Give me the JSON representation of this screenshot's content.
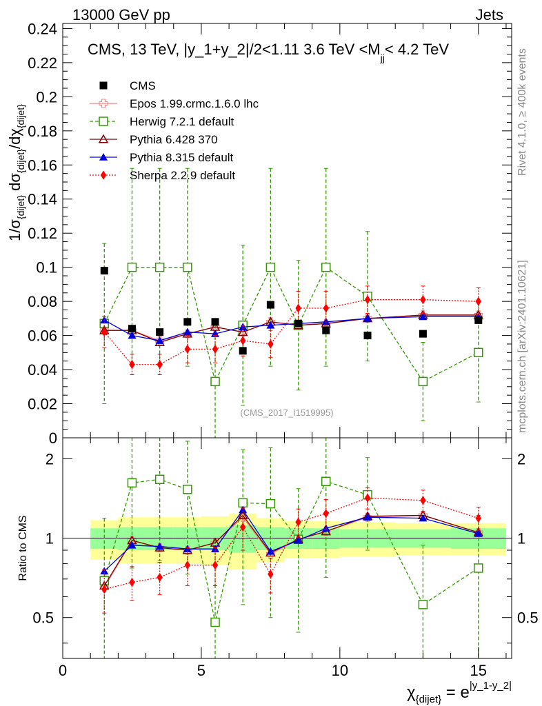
{
  "header": {
    "left_label": "13000 GeV pp",
    "right_label": "Jets"
  },
  "side_labels": {
    "rivet": "Rivet 4.1.0, ≥ 400k events",
    "mcplots": "mcplots.cern.ch [arXiv:2401.10621]"
  },
  "chart_data": {
    "type": "line",
    "title": "CMS, 13 TeV, |y_1+y_2|/2<1.11 3.6 TeV <M_jj< 4.2 TeV",
    "title_parts": {
      "main": "CMS, 13 TeV, |y_1+y_2|/2<1.11 3.6 TeV <M",
      "sub": "jj",
      "tail": "< 4.2 TeV"
    },
    "analysis_tag": "(CMS_2017_I1519995)",
    "xlabel": "χ_{dijet} = e^{|y_1-y_2|}",
    "xlabel_parts": {
      "chi": "χ",
      "chi_sub": "{dijet}",
      "equals": " = e",
      "exp": "|y_1-y_2|"
    },
    "ylabel": "1/σ_{dijet} dσ_{dijet}/dχ_{dijet}",
    "ylabel_parts": {
      "a": "1/σ",
      "a_sub": "{dijet}",
      "b": " dσ",
      "b_sub": "{dijet}",
      "c": "/dχ",
      "c_sub": "{dijet}"
    },
    "ratio_ylabel": "Ratio to CMS",
    "xlim": [
      0,
      16.2
    ],
    "ylim": [
      0,
      0.243
    ],
    "ratio_ylim": [
      0.35,
      2.4
    ],
    "x_ticks": [
      0,
      5,
      10,
      15
    ],
    "x_tick_labels": [
      "0",
      "5",
      "10",
      "15"
    ],
    "y_ticks": [
      0,
      0.02,
      0.04,
      0.06,
      0.08,
      0.1,
      0.12,
      0.14,
      0.16,
      0.18,
      0.2,
      0.22,
      0.24
    ],
    "y_tick_labels": [
      "0",
      "0.02",
      "0.04",
      "0.06",
      "0.08",
      "0.1",
      "0.12",
      "0.14",
      "0.16",
      "0.18",
      "0.2",
      "0.22",
      "0.24"
    ],
    "ratio_ticks": [
      0.5,
      1,
      2
    ],
    "ratio_tick_labels": [
      "0.5",
      "1",
      "2"
    ],
    "bins": [
      [
        1,
        2
      ],
      [
        2,
        3
      ],
      [
        3,
        4
      ],
      [
        4,
        5
      ],
      [
        5,
        6
      ],
      [
        6,
        7
      ],
      [
        7,
        8
      ],
      [
        8,
        9
      ],
      [
        9,
        10
      ],
      [
        10,
        12
      ],
      [
        12,
        14
      ],
      [
        14,
        16
      ]
    ],
    "x": [
      1.5,
      2.5,
      3.5,
      4.5,
      5.5,
      6.5,
      7.5,
      8.5,
      9.5,
      11,
      13,
      15
    ],
    "band_stat": [
      0.09,
      0.1,
      0.1,
      0.1,
      0.1,
      0.12,
      0.1,
      0.09,
      0.09,
      0.08,
      0.08,
      0.09
    ],
    "band_total": [
      0.17,
      0.2,
      0.2,
      0.2,
      0.21,
      0.24,
      0.19,
      0.16,
      0.16,
      0.15,
      0.14,
      0.14
    ],
    "band_colors": {
      "stat": "#99ff99",
      "total": "#ffff99"
    },
    "data": {
      "name": "CMS",
      "values": [
        0.098,
        0.064,
        0.062,
        0.068,
        0.068,
        0.051,
        0.078,
        0.067,
        0.063,
        0.06,
        0.061,
        0.069
      ],
      "color": "#000000"
    },
    "series": [
      {
        "name": "Epos 1.99.crmc.1.6.0 lhc",
        "color": "#f08080",
        "marker": "cross-open",
        "line": "solid",
        "values": [
          0.063,
          0.063,
          0.057,
          0.061,
          0.065,
          0.062,
          0.068,
          0.066,
          0.067,
          0.07,
          0.072,
          0.072
        ],
        "errors": [
          0,
          0,
          0,
          0,
          0,
          0,
          0,
          0,
          0,
          0,
          0,
          0
        ],
        "ratio": [
          0.65,
          0.98,
          0.92,
          0.9,
          0.96,
          1.2,
          0.87,
          0.99,
          1.06,
          1.2,
          1.22,
          1.05
        ]
      },
      {
        "name": "Herwig 7.2.1 default",
        "color": "#339900",
        "marker": "square-open",
        "line": "dashed",
        "values": [
          0.067,
          0.1,
          0.1,
          0.1,
          0.033,
          0.066,
          0.1,
          0.066,
          0.1,
          0.083,
          0.033,
          0.05
        ],
        "errors": [
          0.047,
          0.058,
          0.058,
          0.058,
          0.033,
          0.047,
          0.058,
          0.038,
          0.058,
          0.038,
          0.023,
          0.029
        ],
        "ratio": [
          0.69,
          1.62,
          1.67,
          1.53,
          0.48,
          1.36,
          1.35,
          0.99,
          1.64,
          1.46,
          0.56,
          0.77
        ],
        "ratio_errors": [
          0.5,
          0.85,
          0.85,
          0.8,
          0.5,
          0.8,
          0.85,
          0.55,
          0.93,
          0.56,
          0.38,
          0.45
        ]
      },
      {
        "name": "Pythia 6.428 370",
        "color": "#800000",
        "marker": "triangle-open",
        "line": "solid",
        "values": [
          0.063,
          0.063,
          0.056,
          0.061,
          0.065,
          0.062,
          0.068,
          0.066,
          0.067,
          0.07,
          0.072,
          0.072
        ],
        "errors": [
          0,
          0,
          0,
          0,
          0,
          0,
          0,
          0,
          0,
          0,
          0,
          0
        ],
        "ratio": [
          0.66,
          0.98,
          0.92,
          0.9,
          0.96,
          1.22,
          0.88,
          0.99,
          1.06,
          1.21,
          1.22,
          1.05
        ]
      },
      {
        "name": "Pythia 8.315 default",
        "color": "#0000dd",
        "marker": "triangle-filled",
        "line": "solid",
        "values": [
          0.069,
          0.06,
          0.057,
          0.062,
          0.061,
          0.065,
          0.066,
          0.067,
          0.068,
          0.07,
          0.071,
          0.071
        ],
        "errors": [
          0,
          0,
          0,
          0,
          0,
          0,
          0,
          0,
          0,
          0,
          0,
          0
        ],
        "ratio": [
          0.75,
          0.94,
          0.93,
          0.91,
          0.91,
          1.28,
          0.89,
          0.98,
          1.09,
          1.2,
          1.19,
          1.04
        ]
      },
      {
        "name": "Sherpa 2.2.9 default",
        "color": "#ff0000",
        "marker": "diamond-filled",
        "line": "dotted",
        "values": [
          0.062,
          0.043,
          0.043,
          0.052,
          0.052,
          0.057,
          0.055,
          0.076,
          0.076,
          0.081,
          0.081,
          0.08
        ],
        "errors": [
          0.009,
          0.006,
          0.006,
          0.008,
          0.008,
          0.009,
          0.008,
          0.01,
          0.01,
          0.008,
          0.008,
          0.008
        ],
        "ratio": [
          0.64,
          0.68,
          0.71,
          0.79,
          0.79,
          1.1,
          0.73,
          1.15,
          1.24,
          1.42,
          1.39,
          1.19
        ],
        "ratio_errors": [
          0.12,
          0.1,
          0.1,
          0.13,
          0.13,
          0.2,
          0.11,
          0.14,
          0.16,
          0.13,
          0.13,
          0.12
        ]
      }
    ]
  }
}
